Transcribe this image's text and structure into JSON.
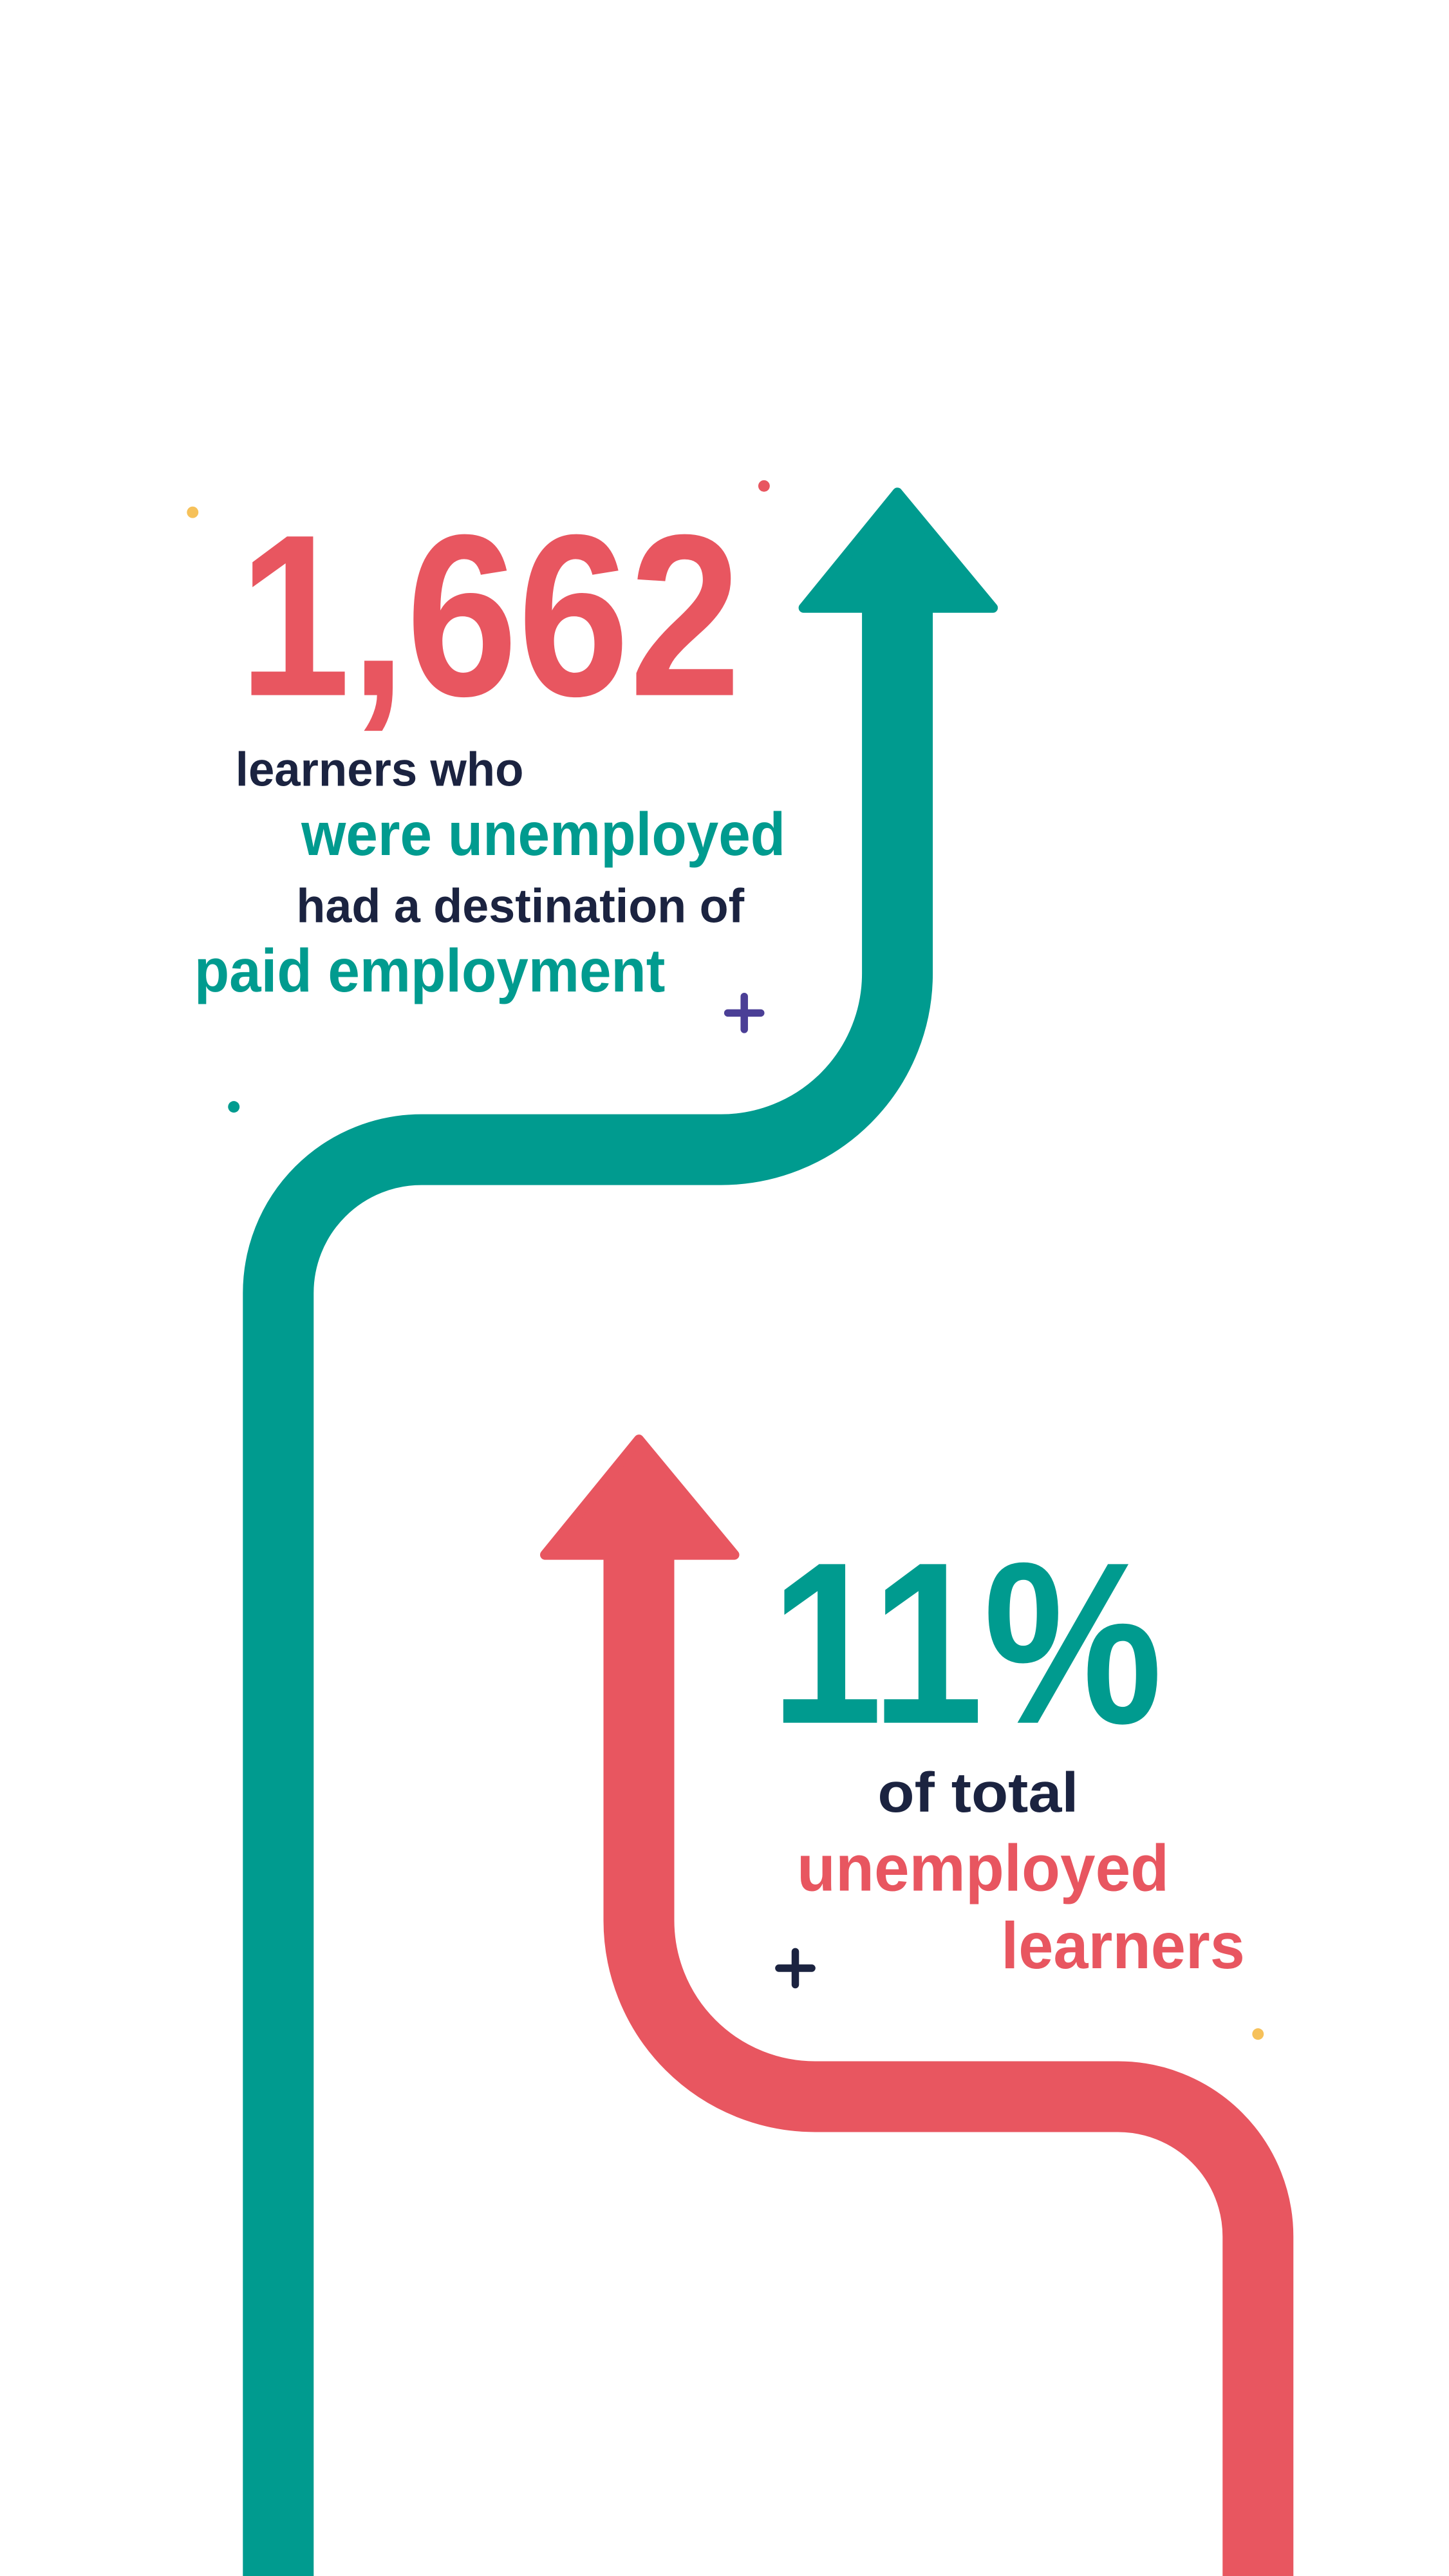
{
  "stat_1": {
    "figure": "1,662",
    "lines": [
      "learners who",
      "were unemployed",
      "had a destination of",
      "paid employment"
    ]
  },
  "stat_2": {
    "figure": "11%",
    "lines": [
      "of total",
      "unemployed",
      "learners"
    ]
  }
}
